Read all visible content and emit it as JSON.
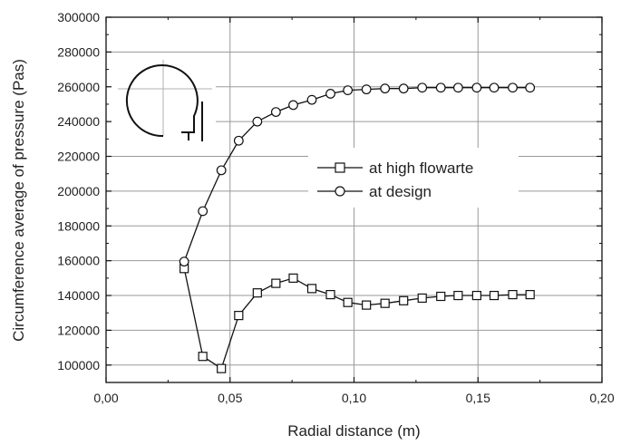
{
  "chart_data": {
    "type": "line",
    "xlabel": "Radial distance (m)",
    "ylabel": "Circumference average of pressure (Pas)",
    "xlim": [
      0,
      0.2
    ],
    "ylim": [
      90000,
      300000
    ],
    "x_ticks": [
      {
        "value": 0.0,
        "label": "0,00"
      },
      {
        "value": 0.05,
        "label": "0,05"
      },
      {
        "value": 0.1,
        "label": "0,10"
      },
      {
        "value": 0.15,
        "label": "0,15"
      },
      {
        "value": 0.2,
        "label": "0,20"
      }
    ],
    "y_ticks": [
      {
        "value": 100000,
        "label": "100000"
      },
      {
        "value": 120000,
        "label": "120000"
      },
      {
        "value": 140000,
        "label": "140000"
      },
      {
        "value": 160000,
        "label": "160000"
      },
      {
        "value": 180000,
        "label": "180000"
      },
      {
        "value": 200000,
        "label": "200000"
      },
      {
        "value": 220000,
        "label": "220000"
      },
      {
        "value": 240000,
        "label": "240000"
      },
      {
        "value": 260000,
        "label": "260000"
      },
      {
        "value": 280000,
        "label": "280000"
      },
      {
        "value": 300000,
        "label": "300000"
      }
    ],
    "grid": true,
    "legend_position": "center-right",
    "series": [
      {
        "name": "at high flowarte",
        "marker": "square",
        "points": [
          [
            0.0315,
            155500
          ],
          [
            0.039,
            105000
          ],
          [
            0.0465,
            98000
          ],
          [
            0.0535,
            128500
          ],
          [
            0.061,
            141500
          ],
          [
            0.0685,
            147000
          ],
          [
            0.0755,
            150000
          ],
          [
            0.083,
            144000
          ],
          [
            0.0905,
            140500
          ],
          [
            0.0975,
            136000
          ],
          [
            0.105,
            134500
          ],
          [
            0.1125,
            135500
          ],
          [
            0.12,
            137000
          ],
          [
            0.1275,
            138500
          ],
          [
            0.135,
            139500
          ],
          [
            0.142,
            140000
          ],
          [
            0.1495,
            140000
          ],
          [
            0.1565,
            140000
          ],
          [
            0.164,
            140500
          ],
          [
            0.171,
            140500
          ]
        ]
      },
      {
        "name": "at design",
        "marker": "circle",
        "points": [
          [
            0.0315,
            159500
          ],
          [
            0.039,
            188500
          ],
          [
            0.0465,
            212000
          ],
          [
            0.0535,
            229000
          ],
          [
            0.061,
            240000
          ],
          [
            0.0685,
            245500
          ],
          [
            0.0755,
            249500
          ],
          [
            0.083,
            252500
          ],
          [
            0.0905,
            256000
          ],
          [
            0.0975,
            258000
          ],
          [
            0.105,
            258500
          ],
          [
            0.1125,
            259000
          ],
          [
            0.12,
            259000
          ],
          [
            0.1275,
            259500
          ],
          [
            0.135,
            259500
          ],
          [
            0.142,
            259500
          ],
          [
            0.1495,
            259500
          ],
          [
            0.1565,
            259500
          ],
          [
            0.164,
            259500
          ],
          [
            0.171,
            259500
          ]
        ]
      }
    ]
  }
}
